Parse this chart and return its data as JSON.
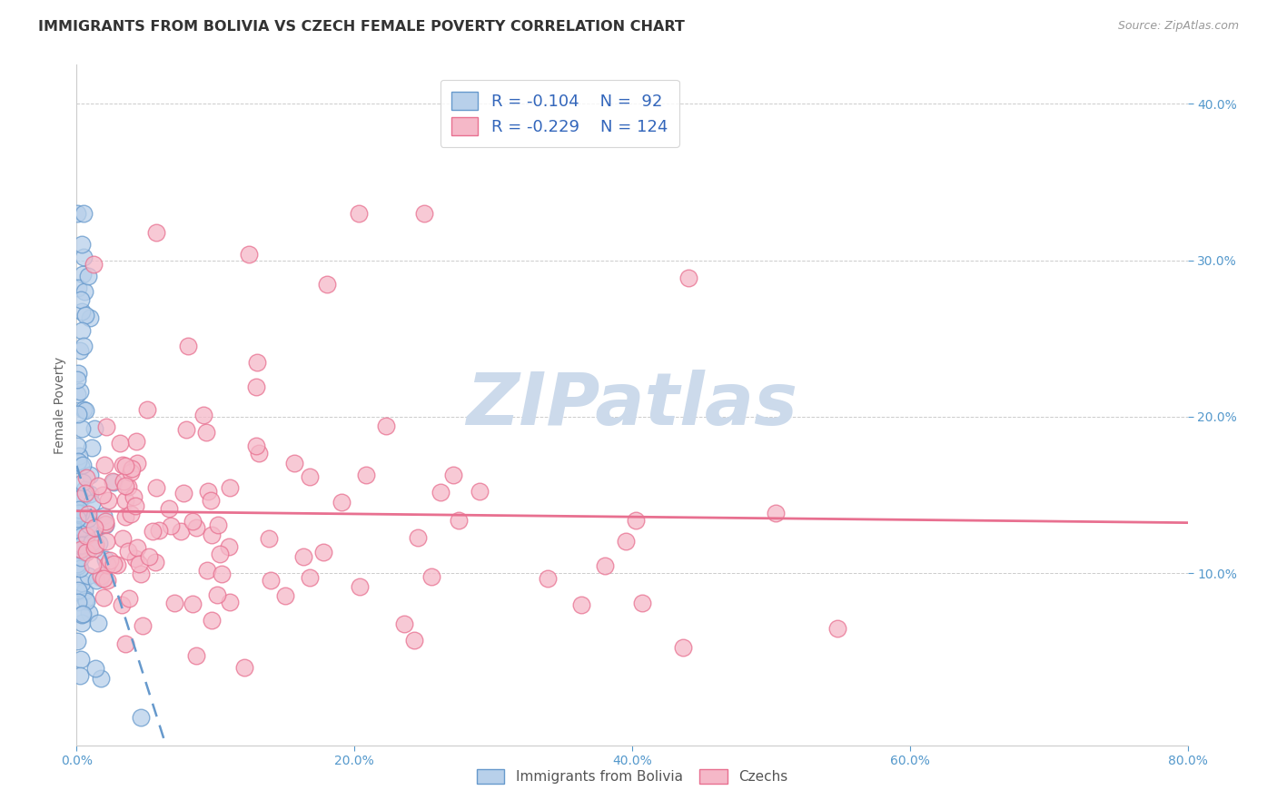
{
  "title": "IMMIGRANTS FROM BOLIVIA VS CZECH FEMALE POVERTY CORRELATION CHART",
  "source": "Source: ZipAtlas.com",
  "ylabel": "Female Poverty",
  "xlim": [
    0.0,
    0.8
  ],
  "ylim": [
    -0.01,
    0.425
  ],
  "yticks": [
    0.1,
    0.2,
    0.3,
    0.4
  ],
  "xticks": [
    0.0,
    0.2,
    0.4,
    0.6,
    0.8
  ],
  "legend_r1": "R = -0.104",
  "legend_n1": "N =  92",
  "legend_r2": "R = -0.229",
  "legend_n2": "N = 124",
  "color_blue_fill": "#b8d0ea",
  "color_blue_edge": "#6699cc",
  "color_pink_fill": "#f5b8c8",
  "color_pink_edge": "#e87090",
  "color_blue_line": "#6699cc",
  "color_pink_line": "#e87090",
  "watermark_color": "#ccdaeb",
  "background_color": "#ffffff",
  "title_fontsize": 11.5,
  "axis_label_fontsize": 10,
  "tick_fontsize": 10,
  "legend_fontsize": 13,
  "tick_color": "#5599cc"
}
